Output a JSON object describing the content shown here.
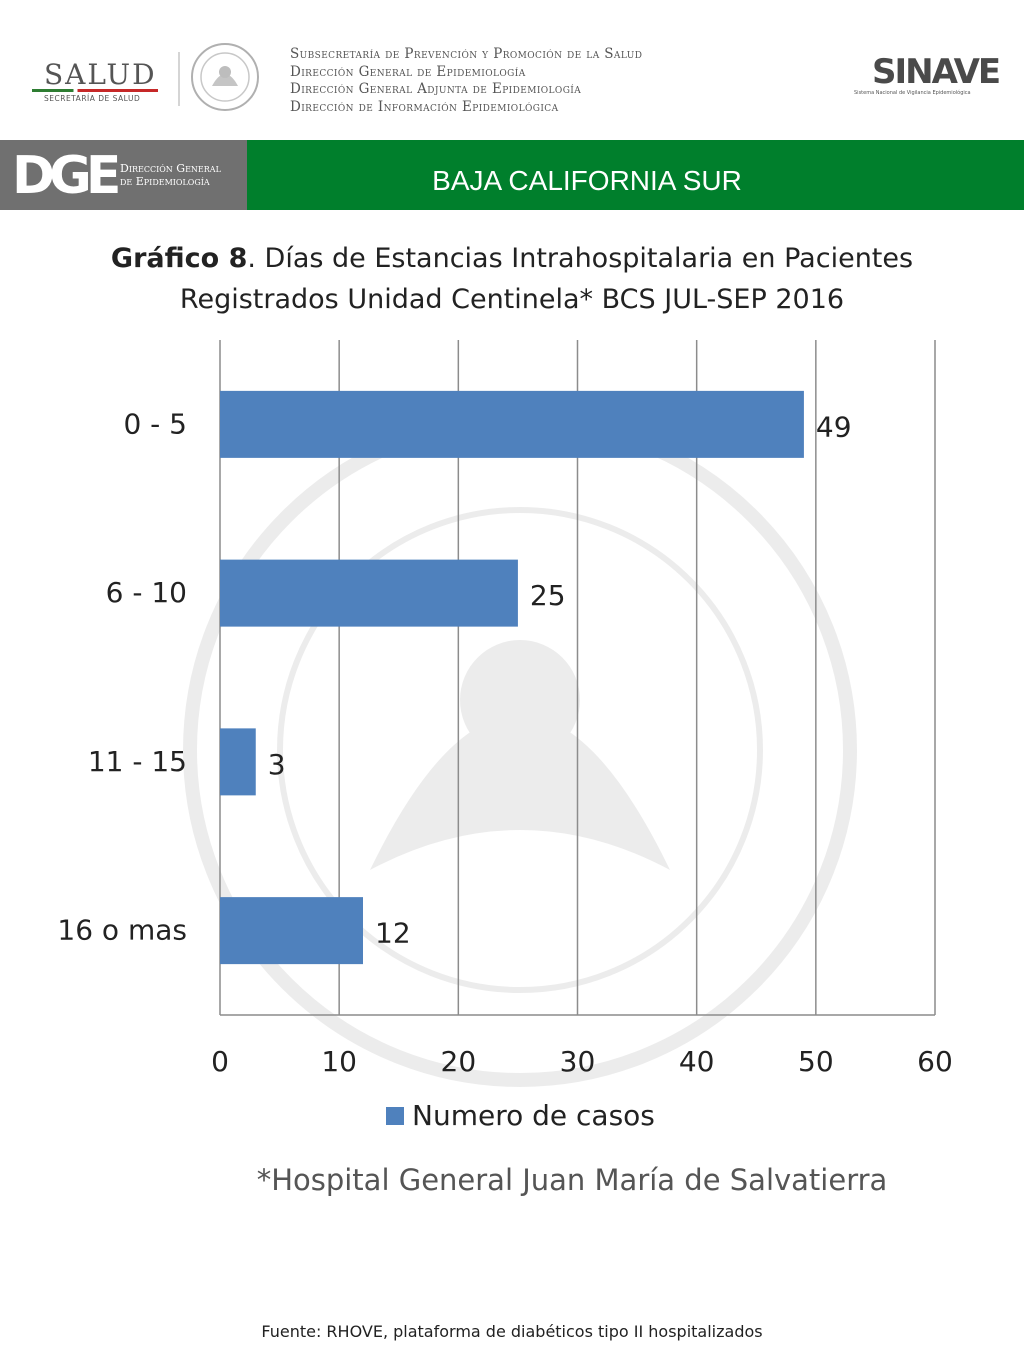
{
  "header": {
    "salud_word": "SALUD",
    "salud_sub": "SECRETARÍA DE SALUD",
    "subsecretaria_lines": [
      "Subsecretaría de Prevención y Promoción de la Salud",
      "Dirección General de Epidemiología",
      "Dirección General Adjunta de Epidemiología",
      "Dirección de Información Epidemiológica"
    ],
    "sinave_word": "SINAVE",
    "sinave_sub": "Sistema Nacional de Vigilancia Epidemiológica"
  },
  "banner": {
    "dge_letters": "DGE",
    "dge_text_1": "Dirección General",
    "dge_text_2": "de Epidemiología",
    "title": "BAJA CALIFORNIA SUR",
    "color": "#007f2c",
    "left_color": "#707070"
  },
  "chart_data": {
    "type": "bar",
    "orientation": "horizontal",
    "title_bold": "Gráfico 8",
    "title_rest": ". Días de Estancias Intrahospitalaria en Pacientes Registrados Unidad Centinela* BCS  JUL-SEP 2016",
    "categories": [
      "0 - 5",
      "6 - 10",
      "11 - 15",
      "16 o mas"
    ],
    "series": [
      {
        "name": "Numero de casos",
        "values": [
          49,
          25,
          3,
          12
        ],
        "color": "#4f81bd"
      }
    ],
    "xlim": [
      0,
      60
    ],
    "xticks": [
      0,
      10,
      20,
      30,
      40,
      50,
      60
    ],
    "grid": true,
    "legend": "bottom",
    "data_labels": true
  },
  "note": "*Hospital General Juan María de Salvatierra",
  "source": "Fuente: RHOVE, plataforma de diabéticos tipo II hospitalizados"
}
